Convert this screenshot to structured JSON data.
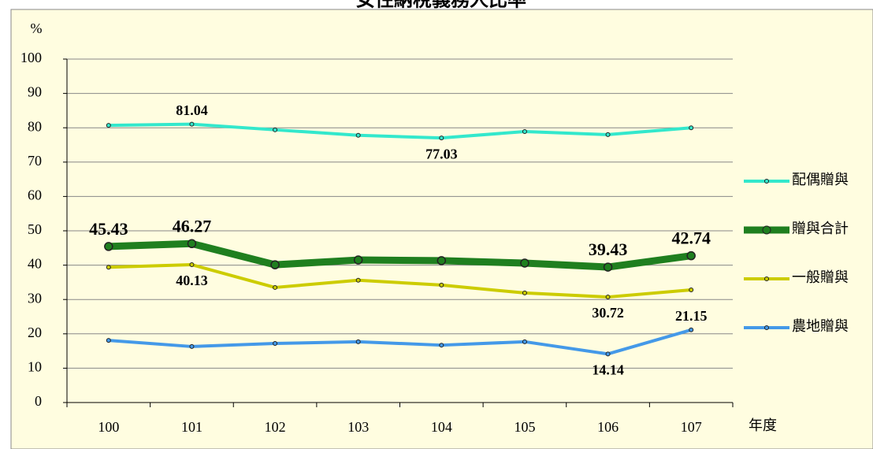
{
  "chart_data": {
    "type": "line",
    "title": "女性納稅義務人比率",
    "y_label": "%",
    "x_label": "年度",
    "categories": [
      "100",
      "101",
      "102",
      "103",
      "104",
      "105",
      "106",
      "107"
    ],
    "ylim": [
      0,
      100
    ],
    "yticks": [
      0,
      10,
      20,
      30,
      40,
      50,
      60,
      70,
      80,
      90,
      100
    ],
    "grid": true,
    "legend": "right",
    "series": [
      {
        "name": "配偶贈與",
        "color": "#33e8cc",
        "label_color": "#2ec8c8",
        "values": [
          80.7,
          81.04,
          79.4,
          77.8,
          77.03,
          78.9,
          78.0,
          80.0
        ],
        "value_labels": [
          null,
          "81.04",
          null,
          null,
          "77.03",
          null,
          null,
          null
        ]
      },
      {
        "name": "贈與合計",
        "color": "#1f7f1f",
        "label_color": "#1f7f1f",
        "values": [
          45.43,
          46.27,
          40.1,
          41.5,
          41.3,
          40.6,
          39.43,
          42.74
        ],
        "value_labels": [
          "45.43",
          "46.27",
          null,
          null,
          null,
          null,
          "39.43",
          "42.74"
        ]
      },
      {
        "name": "一般贈與",
        "color": "#cccc00",
        "label_color": "#9a9a10",
        "values": [
          39.4,
          40.13,
          33.5,
          35.6,
          34.2,
          31.9,
          30.72,
          32.8
        ],
        "value_labels": [
          null,
          "40.13",
          null,
          null,
          null,
          null,
          "30.72",
          null
        ]
      },
      {
        "name": "農地贈與",
        "color": "#4499e8",
        "label_color": "#4499e8",
        "values": [
          18.1,
          16.3,
          17.2,
          17.7,
          16.7,
          17.7,
          14.14,
          21.15
        ],
        "value_labels": [
          null,
          null,
          null,
          null,
          null,
          null,
          "14.14",
          "21.15"
        ]
      }
    ]
  }
}
